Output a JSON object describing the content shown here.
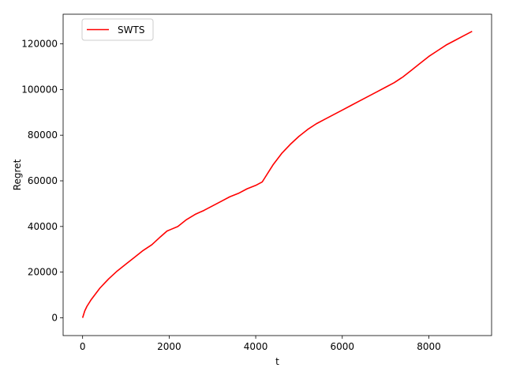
{
  "chart_data": {
    "type": "line",
    "title": "",
    "xlabel": "t",
    "ylabel": "Regret",
    "xlim": [
      -450,
      9450
    ],
    "ylim": [
      -7800,
      133000
    ],
    "xticks": [
      0,
      2000,
      4000,
      6000,
      8000
    ],
    "yticks": [
      0,
      20000,
      40000,
      60000,
      80000,
      100000,
      120000
    ],
    "xtick_labels": [
      "0",
      "2000",
      "4000",
      "6000",
      "8000"
    ],
    "ytick_labels": [
      "0",
      "20000",
      "40000",
      "60000",
      "80000",
      "100000",
      "120000"
    ],
    "grid": false,
    "legend_position": "upper-left",
    "colors": {
      "series": "#ff0000",
      "axis": "#000000",
      "legend_border": "#cccccc"
    },
    "series": [
      {
        "name": "SWTS",
        "x": [
          0,
          50,
          100,
          200,
          300,
          400,
          500,
          600,
          800,
          1000,
          1200,
          1400,
          1600,
          1800,
          1950,
          2050,
          2200,
          2400,
          2600,
          2800,
          3000,
          3200,
          3400,
          3600,
          3800,
          4000,
          4150,
          4200,
          4300,
          4400,
          4600,
          4800,
          5000,
          5200,
          5400,
          5600,
          5800,
          6000,
          6200,
          6400,
          6600,
          6800,
          7000,
          7200,
          7400,
          7600,
          7800,
          8000,
          8200,
          8400,
          8600,
          8800,
          9000
        ],
        "y": [
          0,
          3000,
          5000,
          8000,
          10500,
          13000,
          15000,
          17000,
          20500,
          23500,
          26500,
          29500,
          32000,
          35500,
          38000,
          38800,
          40000,
          43000,
          45300,
          47000,
          49000,
          51000,
          53000,
          54500,
          56500,
          58000,
          59500,
          61000,
          64000,
          67000,
          72000,
          76000,
          79500,
          82500,
          85000,
          87000,
          89000,
          91000,
          93000,
          95000,
          97000,
          99000,
          101000,
          103000,
          105500,
          108500,
          111500,
          114500,
          117000,
          119500,
          121500,
          123500,
          125500
        ]
      }
    ]
  }
}
